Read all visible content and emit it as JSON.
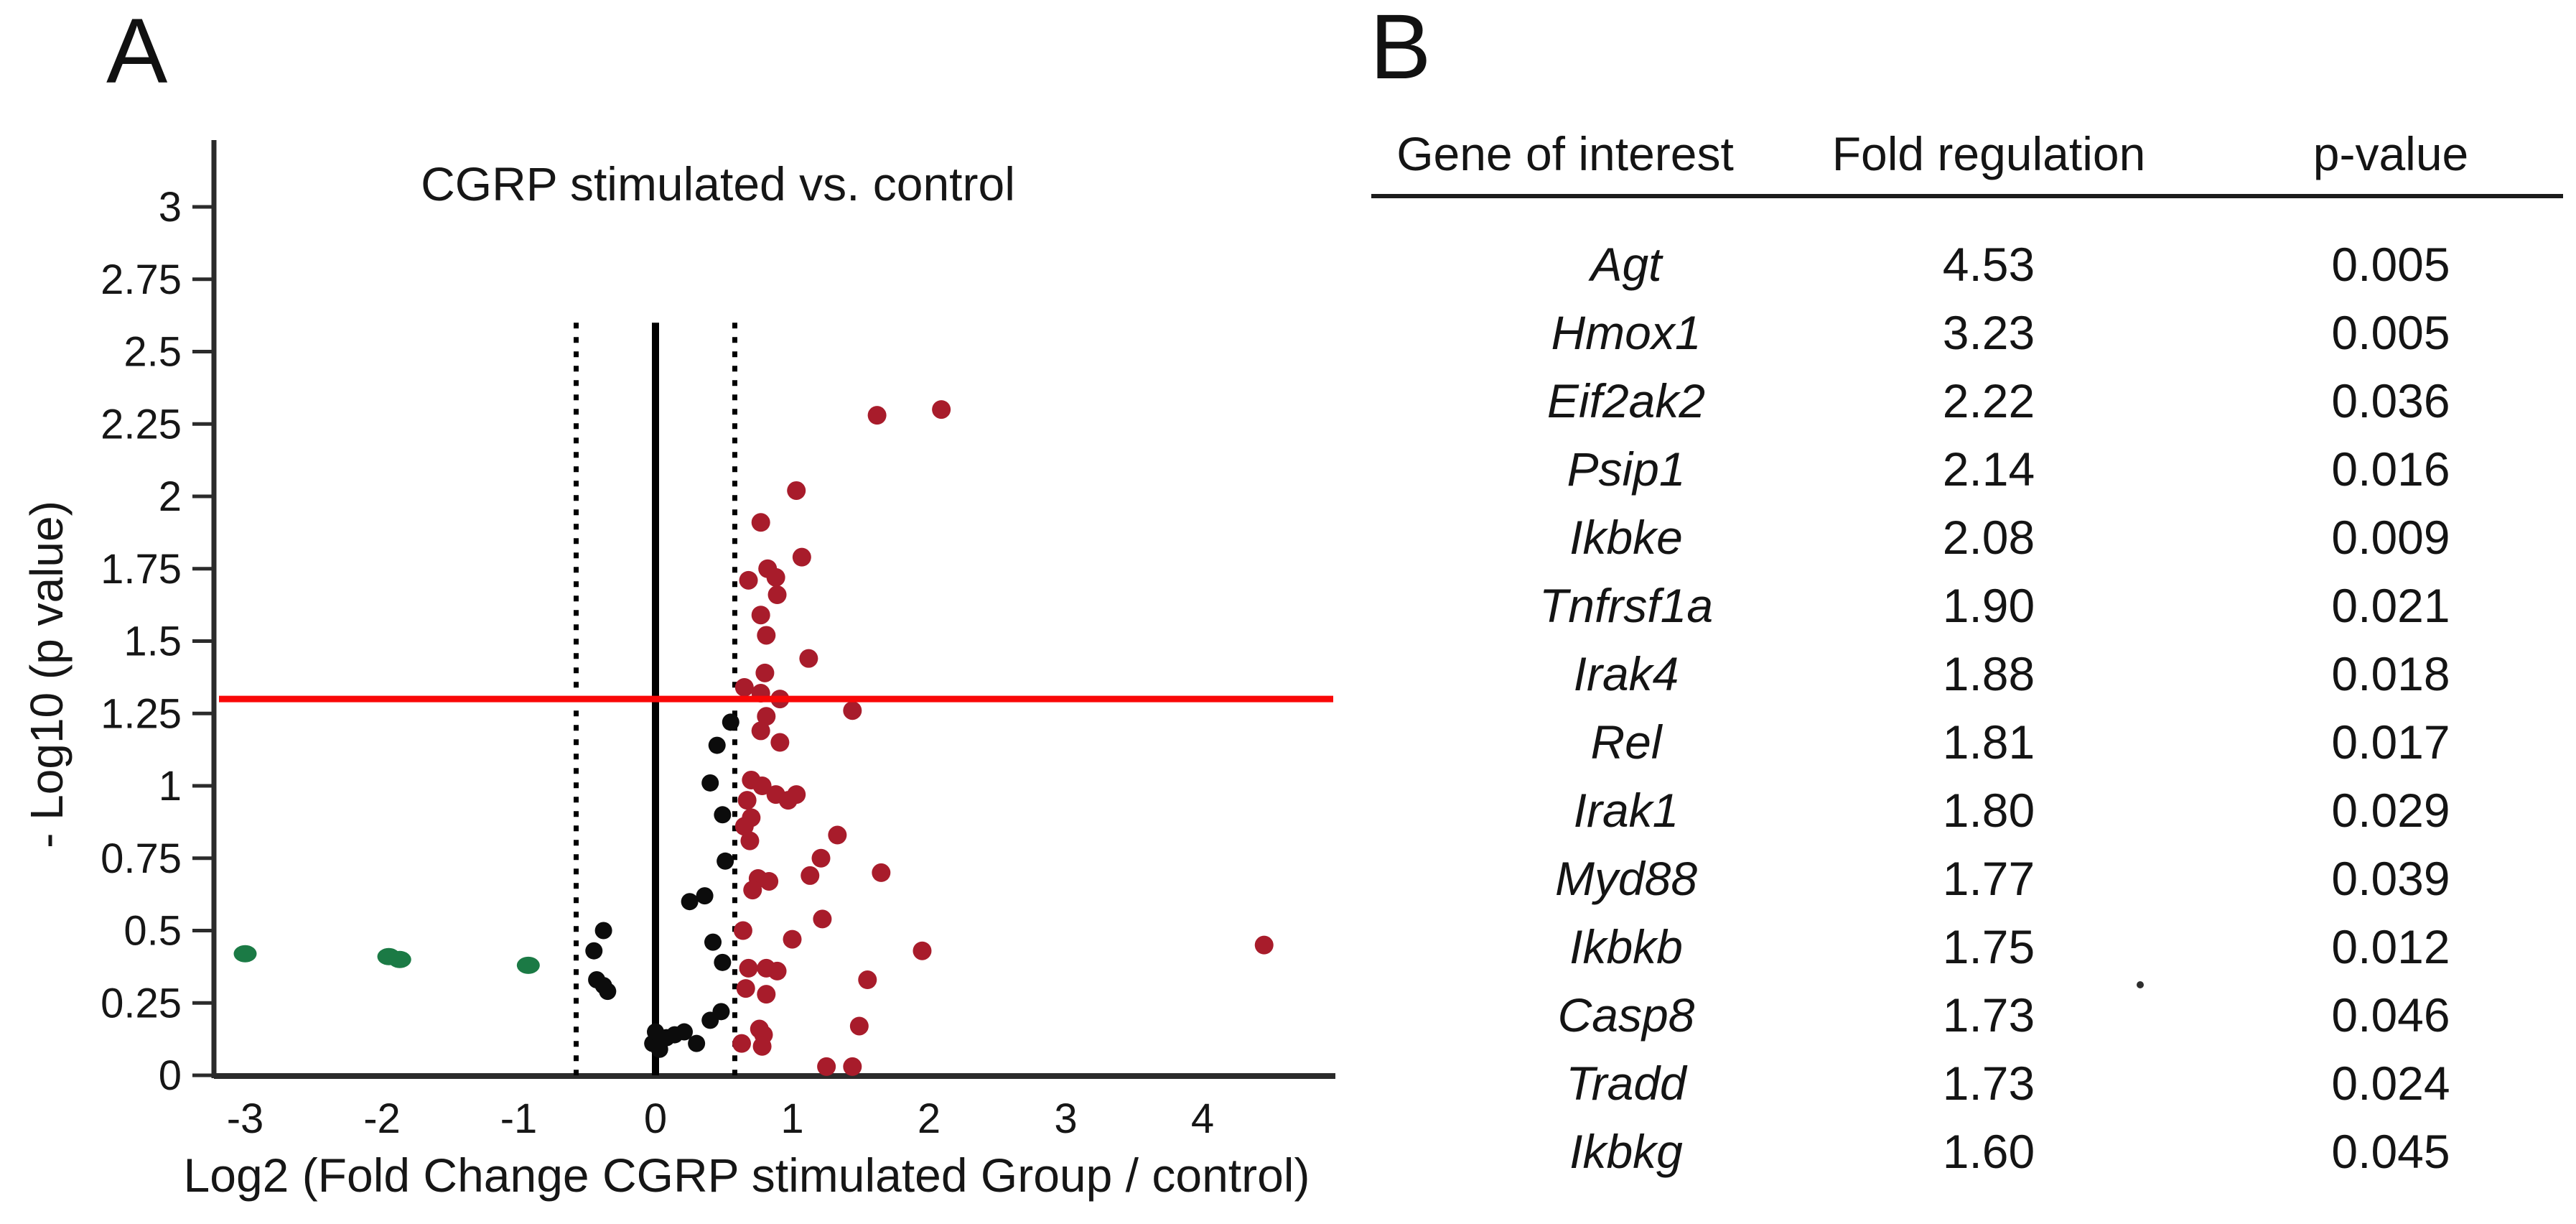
{
  "panel_a": {
    "label": "A",
    "title": "CGRP stimulated vs. control",
    "x_axis_label": "Log2 (Fold Change CGRP stimulated Group / control)",
    "y_axis_label": "- Log10 (p value)"
  },
  "panel_b": {
    "label": "B",
    "columns": [
      "Gene of interest",
      "Fold regulation",
      "p-value"
    ],
    "rows": [
      {
        "gene": "Agt",
        "fold": "4.53",
        "p": "0.005"
      },
      {
        "gene": "Hmox1",
        "fold": "3.23",
        "p": "0.005"
      },
      {
        "gene": "Eif2ak2",
        "fold": "2.22",
        "p": "0.036"
      },
      {
        "gene": "Psip1",
        "fold": "2.14",
        "p": "0.016"
      },
      {
        "gene": "Ikbke",
        "fold": "2.08",
        "p": "0.009"
      },
      {
        "gene": "Tnfrsf1a",
        "fold": "1.90",
        "p": "0.021"
      },
      {
        "gene": "Irak4",
        "fold": "1.88",
        "p": "0.018"
      },
      {
        "gene": "Rel",
        "fold": "1.81",
        "p": "0.017"
      },
      {
        "gene": "Irak1",
        "fold": "1.80",
        "p": "0.029"
      },
      {
        "gene": "Myd88",
        "fold": "1.77",
        "p": "0.039"
      },
      {
        "gene": "Ikbkb",
        "fold": "1.75",
        "p": "0.012"
      },
      {
        "gene": "Casp8",
        "fold": "1.73",
        "p": "0.046"
      },
      {
        "gene": "Tradd",
        "fold": "1.73",
        "p": "0.024"
      },
      {
        "gene": "Ikbkg",
        "fold": "1.60",
        "p": "0.045"
      }
    ],
    "stray_mark": "."
  },
  "chart_data": {
    "type": "scatter",
    "title": "CGRP stimulated vs. control",
    "xlabel": "Log2 (Fold Change CGRP stimulated Group / control)",
    "ylabel": "- Log10 (p value)",
    "xlim": [
      -3.25,
      4.95
    ],
    "ylim": [
      0,
      3.23
    ],
    "grid": false,
    "legend": "none",
    "x_ticks": [
      "-3",
      "-2",
      "-1",
      "0",
      "1",
      "2",
      "3",
      "4"
    ],
    "y_ticks": [
      "0",
      "0.25",
      "0.5",
      "0.75",
      "1",
      "1.25",
      "1.5",
      "1.75",
      "2",
      "2.25",
      "2.5",
      "2.75",
      "3"
    ],
    "reference_lines": {
      "significance_hline_y": 1.3,
      "significance_color": "#f90808",
      "zero_vline_x": 0,
      "threshold_vlines_x": [
        -0.58,
        0.58
      ],
      "vlines_top_y": 2.6,
      "threshold_color": "#000000"
    },
    "series": [
      {
        "name": "green-points-downregulated",
        "color": "#1b7a45",
        "points": [
          [
            -3.0,
            0.42
          ],
          [
            -1.95,
            0.41
          ],
          [
            -1.87,
            0.4
          ],
          [
            -0.93,
            0.38
          ]
        ]
      },
      {
        "name": "black-points-nonsignificant",
        "color": "#0c0c0c",
        "points": [
          [
            -0.45,
            0.43
          ],
          [
            -0.38,
            0.5
          ],
          [
            -0.43,
            0.33
          ],
          [
            -0.38,
            0.31
          ],
          [
            -0.35,
            0.29
          ],
          [
            -0.02,
            0.11
          ],
          [
            0.0,
            0.15
          ],
          [
            0.03,
            0.09
          ],
          [
            0.08,
            0.13
          ],
          [
            0.14,
            0.14
          ],
          [
            0.21,
            0.15
          ],
          [
            0.25,
            0.6
          ],
          [
            0.36,
            0.62
          ],
          [
            0.3,
            0.11
          ],
          [
            0.4,
            0.19
          ],
          [
            0.48,
            0.22
          ],
          [
            0.42,
            0.46
          ],
          [
            0.49,
            0.39
          ],
          [
            0.4,
            1.01
          ],
          [
            0.45,
            1.14
          ],
          [
            0.55,
            1.22
          ],
          [
            0.49,
            0.9
          ],
          [
            0.51,
            0.74
          ]
        ]
      },
      {
        "name": "red-points-upregulated",
        "color": "#a81c2b",
        "points": [
          [
            1.62,
            2.28
          ],
          [
            2.09,
            2.3
          ],
          [
            1.03,
            2.02
          ],
          [
            0.77,
            1.91
          ],
          [
            1.07,
            1.79
          ],
          [
            0.82,
            1.75
          ],
          [
            0.88,
            1.72
          ],
          [
            0.68,
            1.71
          ],
          [
            0.89,
            1.66
          ],
          [
            0.77,
            1.59
          ],
          [
            0.81,
            1.52
          ],
          [
            1.12,
            1.44
          ],
          [
            0.8,
            1.39
          ],
          [
            0.65,
            1.34
          ],
          [
            0.77,
            1.32
          ],
          [
            0.91,
            1.3
          ],
          [
            1.44,
            1.26
          ],
          [
            0.81,
            1.24
          ],
          [
            0.77,
            1.19
          ],
          [
            0.91,
            1.15
          ],
          [
            0.7,
            1.02
          ],
          [
            0.78,
            1.0
          ],
          [
            0.88,
            0.97
          ],
          [
            0.97,
            0.95
          ],
          [
            1.03,
            0.97
          ],
          [
            0.67,
            0.95
          ],
          [
            0.7,
            0.89
          ],
          [
            0.65,
            0.86
          ],
          [
            0.69,
            0.81
          ],
          [
            1.33,
            0.83
          ],
          [
            1.21,
            0.75
          ],
          [
            1.13,
            0.69
          ],
          [
            1.65,
            0.7
          ],
          [
            0.75,
            0.68
          ],
          [
            0.83,
            0.67
          ],
          [
            0.71,
            0.64
          ],
          [
            1.22,
            0.54
          ],
          [
            0.64,
            0.5
          ],
          [
            1.0,
            0.47
          ],
          [
            1.95,
            0.43
          ],
          [
            4.45,
            0.45
          ],
          [
            1.55,
            0.33
          ],
          [
            0.68,
            0.37
          ],
          [
            0.81,
            0.37
          ],
          [
            0.89,
            0.36
          ],
          [
            0.66,
            0.3
          ],
          [
            0.81,
            0.28
          ],
          [
            1.49,
            0.17
          ],
          [
            0.76,
            0.16
          ],
          [
            0.79,
            0.14
          ],
          [
            0.63,
            0.11
          ],
          [
            0.78,
            0.1
          ],
          [
            1.44,
            0.03
          ],
          [
            1.25,
            0.03
          ]
        ]
      }
    ]
  },
  "colors": {
    "background": "#ffffff",
    "axis": "#2b2b2b",
    "text": "#161616",
    "significance_line": "#f90808",
    "green_point": "#1b7a45",
    "black_point": "#0c0c0c",
    "red_point": "#a81c2b"
  }
}
